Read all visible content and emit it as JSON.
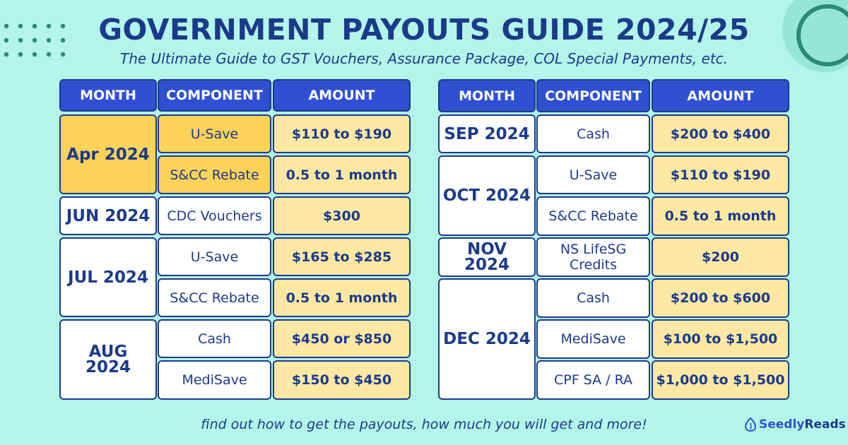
{
  "title": "GOVERNMENT PAYOUTS GUIDE 2024/25",
  "subtitle": "The Ultimate Guide to GST Vouchers, Assurance Package, COL Special Payments, etc.",
  "headers": {
    "month": "MONTH",
    "component": "COMPONENT",
    "amount": "AMOUNT"
  },
  "left_table": {
    "rows": [
      {
        "month": "Apr 2024",
        "component": "U-Save",
        "amount": "$110 to $190"
      },
      {
        "month": "Apr 2024",
        "component": "S&CC Rebate",
        "amount": "0.5 to 1 month"
      },
      {
        "month": "JUN 2024",
        "component": "CDC Vouchers",
        "amount": "$300"
      },
      {
        "month": "JUL 2024",
        "component": "U-Save",
        "amount": "$165 to $285"
      },
      {
        "month": "JUL 2024",
        "component": "S&CC Rebate",
        "amount": "0.5 to 1 month"
      },
      {
        "month": "AUG 2024",
        "component": "Cash",
        "amount": "$450 or $850"
      },
      {
        "month": "AUG 2024",
        "component": "MediSave",
        "amount": "$150 to $450"
      }
    ]
  },
  "right_table": {
    "rows": [
      {
        "month": "SEP 2024",
        "component": "Cash",
        "amount": "$200 to $400"
      },
      {
        "month": "OCT 2024",
        "component": "U-Save",
        "amount": "$110 to $190"
      },
      {
        "month": "OCT 2024",
        "component": "S&CC Rebate",
        "amount": "0.5 to 1 month"
      },
      {
        "month": "NOV 2024",
        "component": "NS LifeSG Credits",
        "amount": "$200"
      },
      {
        "month": "DEC 2024",
        "component": "Cash",
        "amount": "$200 to $600"
      },
      {
        "month": "DEC 2024",
        "component": "MediSave",
        "amount": "$100 to $1,500"
      },
      {
        "month": "DEC 2024",
        "component": "CPF SA / RA",
        "amount": "$1,000 to $1,500"
      }
    ]
  },
  "footer": "find out how to get the payouts, how much you will get and more!",
  "brand": {
    "part1": "Seedly",
    "part2": "Reads"
  },
  "colors": {
    "background": "#b3f5e8",
    "header": "#2f50d0",
    "text": "#1b3a8a",
    "highlight": "#fcd25a",
    "amount": "#fde8a3"
  },
  "icons": [
    "dot-grid-decoration",
    "ring-decoration",
    "seedly-logo-icon"
  ]
}
